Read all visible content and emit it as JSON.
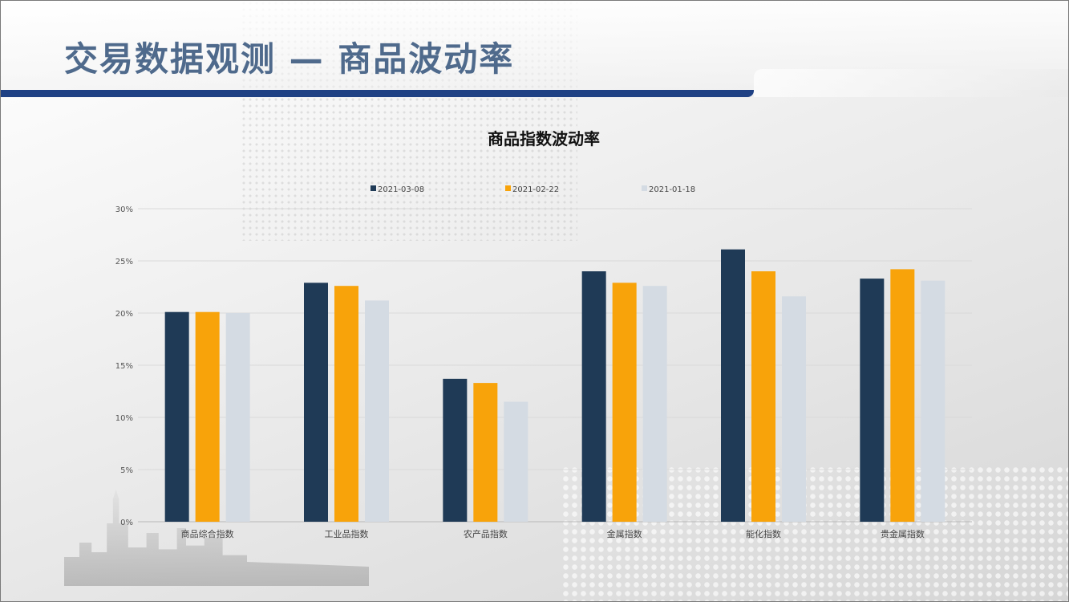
{
  "page": {
    "title": "交易数据观测 — 商品波动率"
  },
  "colors": {
    "title_bar": "#1f4184",
    "title_text": "#4f6a8c"
  },
  "chart_data": {
    "type": "bar",
    "title": "商品指数波动率",
    "categories": [
      "商品综合指数",
      "工业品指数",
      "农产品指数",
      "金属指数",
      "能化指数",
      "贵金属指数"
    ],
    "series": [
      {
        "name": "2021-03-08",
        "color": "#1f3a56",
        "values": [
          20.1,
          22.9,
          13.7,
          24.0,
          26.1,
          23.3
        ]
      },
      {
        "name": "2021-02-22",
        "color": "#f8a30a",
        "values": [
          20.1,
          22.6,
          13.3,
          22.9,
          24.0,
          24.2
        ]
      },
      {
        "name": "2021-01-18",
        "color": "#d4dbe3",
        "values": [
          20.0,
          21.2,
          11.5,
          22.6,
          21.6,
          23.1
        ]
      }
    ],
    "yticks": [
      "0%",
      "5%",
      "10%",
      "15%",
      "20%",
      "25%",
      "30%"
    ],
    "ylim": [
      0,
      30
    ],
    "grid": true,
    "legend_position": "top"
  }
}
